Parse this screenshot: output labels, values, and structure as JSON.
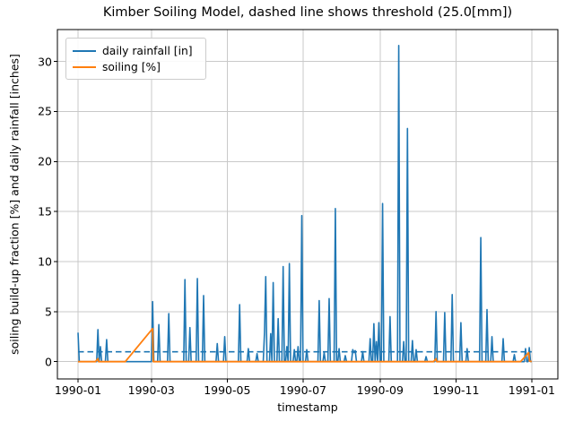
{
  "chart_data": {
    "type": "line",
    "title": "Kimber Soiling Model, dashed line shows threshold (25.0[mm])",
    "xlabel": "timestamp",
    "ylabel": "soiling build-up fraction [%] and daily rainfall [inches]",
    "x_ticks": [
      "1990-01",
      "1990-03",
      "1990-05",
      "1990-07",
      "1990-09",
      "1990-11",
      "1991-01"
    ],
    "x_tick_days": [
      0,
      59,
      120,
      181,
      243,
      304,
      365
    ],
    "y_ticks": [
      0,
      5,
      10,
      15,
      20,
      25,
      30
    ],
    "xlim_days": [
      -16.6,
      386
    ],
    "ylim": [
      -1.73,
      33.19
    ],
    "grid": true,
    "legend_position": "upper-left",
    "threshold": {
      "value_mm": 25.0,
      "value_inches": 0.984,
      "style": "dashed",
      "color": "#1f77b4",
      "span_days": [
        0,
        365
      ]
    },
    "series": [
      {
        "name": "daily rainfall [in]",
        "color": "#1f77b4",
        "style": "solid",
        "encoding": "events are [day_of_1990, inches]; unlisted days are 0",
        "events": [
          [
            0,
            2.9
          ],
          [
            16,
            3.2
          ],
          [
            18,
            1.5
          ],
          [
            23,
            2.2
          ],
          [
            60,
            6.0
          ],
          [
            65,
            3.7
          ],
          [
            73,
            4.8
          ],
          [
            86,
            8.2
          ],
          [
            90,
            3.4
          ],
          [
            96,
            8.3
          ],
          [
            101,
            6.6
          ],
          [
            112,
            1.8
          ],
          [
            118,
            2.5
          ],
          [
            130,
            5.7
          ],
          [
            137,
            1.3
          ],
          [
            144,
            0.8
          ],
          [
            150,
            2.9
          ],
          [
            151,
            8.5
          ],
          [
            155,
            2.8
          ],
          [
            157,
            7.9
          ],
          [
            161,
            4.3
          ],
          [
            165,
            9.5
          ],
          [
            168,
            1.5
          ],
          [
            170,
            9.8
          ],
          [
            174,
            1.2
          ],
          [
            177,
            1.5
          ],
          [
            180,
            14.6
          ],
          [
            184,
            1.2
          ],
          [
            194,
            6.1
          ],
          [
            198,
            0.9
          ],
          [
            202,
            6.3
          ],
          [
            207,
            15.3
          ],
          [
            210,
            1.3
          ],
          [
            215,
            0.6
          ],
          [
            221,
            1.2
          ],
          [
            222,
            0.9
          ],
          [
            223,
            1.1
          ],
          [
            229,
            1.0
          ],
          [
            235,
            2.3
          ],
          [
            238,
            3.8
          ],
          [
            240,
            2.0
          ],
          [
            242,
            3.9
          ],
          [
            245,
            15.8
          ],
          [
            251,
            4.5
          ],
          [
            258,
            31.6
          ],
          [
            262,
            2.0
          ],
          [
            265,
            23.3
          ],
          [
            269,
            2.1
          ],
          [
            272,
            1.2
          ],
          [
            280,
            0.5
          ],
          [
            288,
            5.0
          ],
          [
            295,
            4.9
          ],
          [
            301,
            6.7
          ],
          [
            308,
            3.9
          ],
          [
            313,
            1.3
          ],
          [
            324,
            12.4
          ],
          [
            329,
            5.2
          ],
          [
            333,
            2.5
          ],
          [
            342,
            2.3
          ],
          [
            351,
            0.7
          ],
          [
            360,
            1.3
          ],
          [
            363,
            1.4
          ]
        ]
      },
      {
        "name": "soiling [%]",
        "color": "#ff7f0e",
        "style": "solid",
        "encoding": "breakpoints are [day_of_1990, percent]; linear between points",
        "breakpoints": [
          [
            0,
            0
          ],
          [
            14,
            0
          ],
          [
            16,
            0.3
          ],
          [
            16.5,
            0
          ],
          [
            38,
            0
          ],
          [
            60,
            3.3
          ],
          [
            60.5,
            0
          ],
          [
            286,
            0
          ],
          [
            288,
            0.3
          ],
          [
            288.5,
            0
          ],
          [
            356,
            0
          ],
          [
            362.5,
            0.9
          ],
          [
            363.2,
            0.05
          ],
          [
            365,
            0
          ]
        ]
      }
    ]
  },
  "colors": {
    "rainfall_blue": "#1f77b4",
    "soiling_orange": "#ff7f0e",
    "grid": "#c9c9c9",
    "spine": "#000000",
    "background": "#ffffff"
  }
}
